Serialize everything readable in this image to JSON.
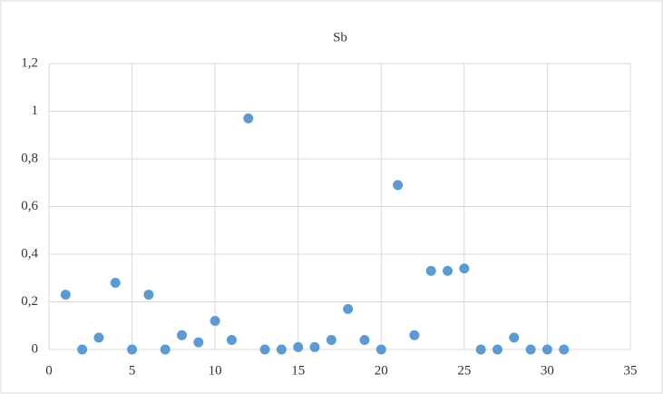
{
  "chart_data": {
    "type": "scatter",
    "title": "Sb",
    "x": [
      1,
      2,
      3,
      4,
      5,
      6,
      7,
      8,
      9,
      10,
      11,
      12,
      13,
      14,
      15,
      16,
      17,
      18,
      19,
      20,
      21,
      22,
      23,
      24,
      25,
      26,
      27,
      28,
      29,
      30,
      31
    ],
    "series": [
      {
        "color": "#5b9bd5",
        "values": [
          0.23,
          0,
          0.05,
          0.28,
          0,
          0.23,
          0,
          0.06,
          0.03,
          0.12,
          0.04,
          0.97,
          0,
          0,
          0.01,
          0.01,
          0.04,
          0.17,
          0.04,
          0,
          0.69,
          0.06,
          0.33,
          0.33,
          0.34,
          0,
          0,
          0.05,
          0,
          0,
          0
        ]
      }
    ],
    "xlim": [
      0,
      35
    ],
    "xticks": [
      0,
      5,
      10,
      15,
      20,
      25,
      30,
      35
    ],
    "ylim": [
      0,
      1.2
    ],
    "yticks": [
      0,
      {
        "value": 0.2,
        "label": "0,2"
      },
      {
        "value": 0.4,
        "label": "0,4"
      },
      {
        "value": 0.6,
        "label": "0,6"
      },
      {
        "value": 0.8,
        "label": "0,8"
      },
      1,
      {
        "value": 1.2,
        "label": "1,2"
      }
    ],
    "grid": true
  }
}
